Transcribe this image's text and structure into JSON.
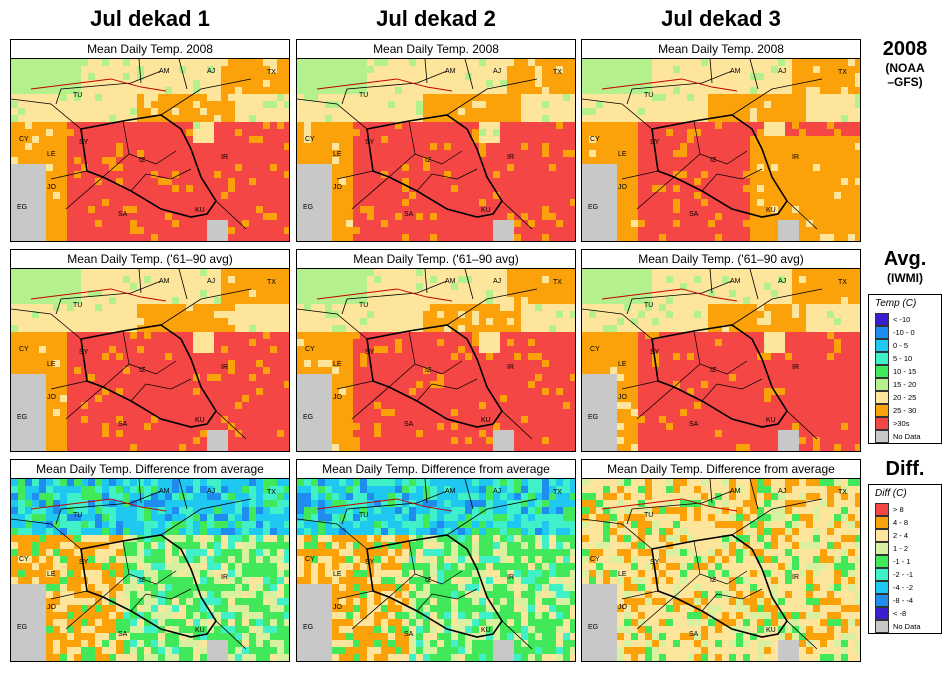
{
  "columns": [
    "Jul dekad 1",
    "Jul dekad 2",
    "Jul dekad 3"
  ],
  "rows": [
    {
      "big": "2008",
      "small1": "(NOAA",
      "small2": "–GFS)"
    },
    {
      "big": "Avg.",
      "small1": "(IWMI)",
      "small2": ""
    },
    {
      "big": "Diff.",
      "small1": "",
      "small2": ""
    }
  ],
  "panel_titles": [
    "Mean Daily Temp. 2008",
    "Mean Daily Temp. ('61–90 avg)",
    "Mean Daily Temp. Difference from average"
  ],
  "map_labels": [
    "AM",
    "AJ",
    "TX",
    "TU",
    "CY",
    "LE",
    "SY",
    "IZ",
    "IR",
    "JO",
    "EG",
    "SA",
    "KU"
  ],
  "temp_legend": {
    "title": "Temp (C)",
    "items": [
      {
        "label": "< -10",
        "color": "#3a1fcf"
      },
      {
        "label": "-10 - 0",
        "color": "#1f8cf0"
      },
      {
        "label": "0 - 5",
        "color": "#1fc8f0"
      },
      {
        "label": "5 - 10",
        "color": "#3ff0c8"
      },
      {
        "label": "10 - 15",
        "color": "#41e85a"
      },
      {
        "label": "15 - 20",
        "color": "#b4f08c"
      },
      {
        "label": "20 - 25",
        "color": "#fde59b"
      },
      {
        "label": "25 - 30",
        "color": "#fba20a"
      },
      {
        "label": ">30s",
        "color": "#f54646"
      },
      {
        "label": "No Data",
        "color": "#c8c8c8"
      }
    ]
  },
  "diff_legend": {
    "title": "Diff (C)",
    "items": [
      {
        "label": "> 8",
        "color": "#f54646"
      },
      {
        "label": "4 - 8",
        "color": "#fba20a"
      },
      {
        "label": "2 - 4",
        "color": "#fde59b"
      },
      {
        "label": "1 - 2",
        "color": "#d8f0a0"
      },
      {
        "label": "-1 - 1",
        "color": "#41e85a"
      },
      {
        "label": "-2 - -1",
        "color": "#3ff0c8"
      },
      {
        "label": "-4 - -2",
        "color": "#1fc8f0"
      },
      {
        "label": "-8 - -4",
        "color": "#1f8cf0"
      },
      {
        "label": "< -8",
        "color": "#3a1fcf"
      },
      {
        "label": "No Data",
        "color": "#c8c8c8"
      }
    ]
  }
}
